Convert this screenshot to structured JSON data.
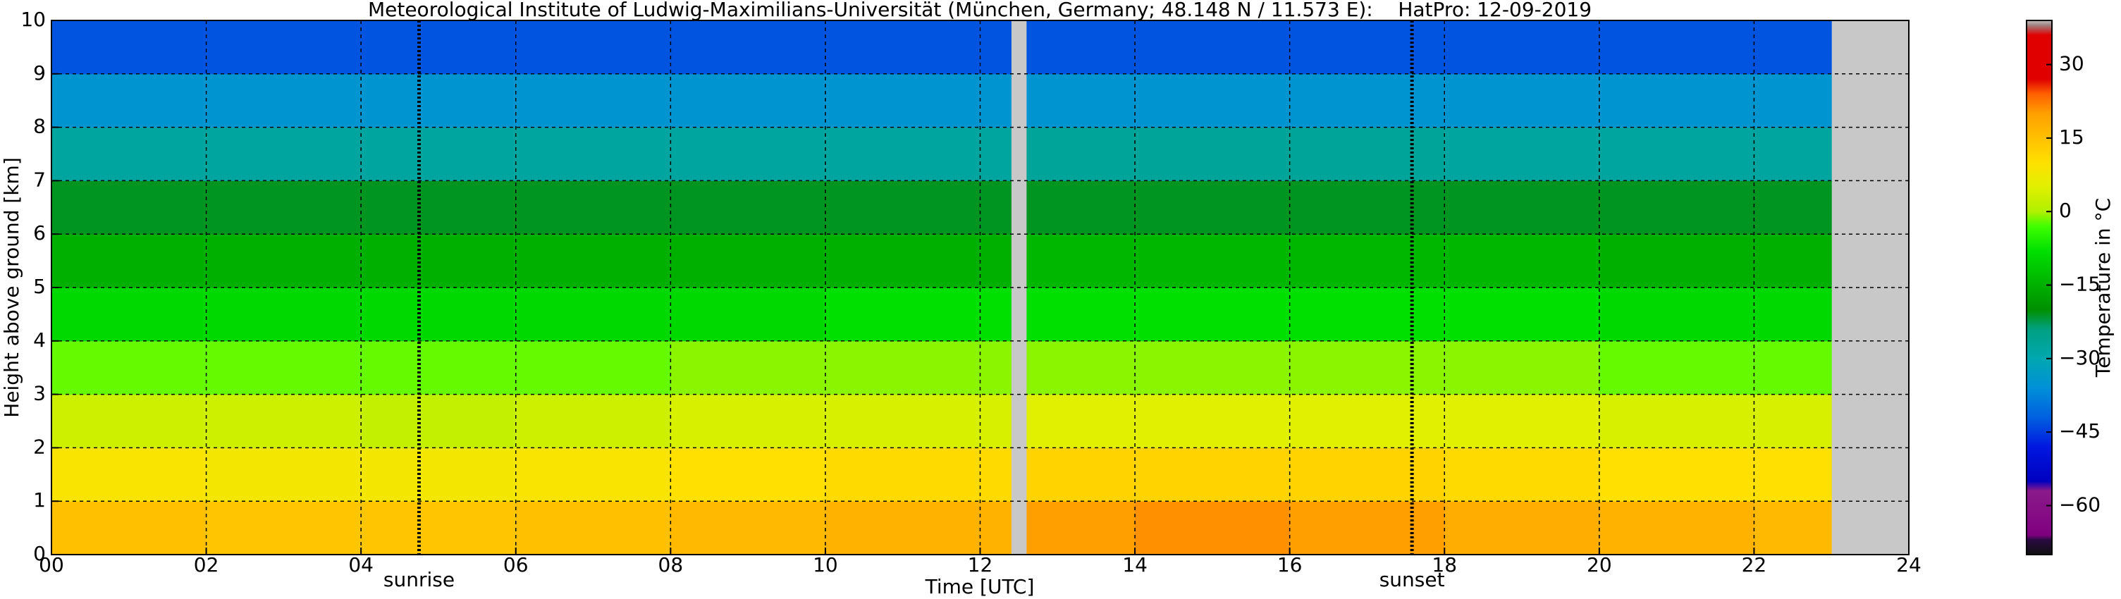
{
  "chart_data": {
    "type": "heatmap",
    "title": "Meteorological Institute of Ludwig-Maximilians-Universität (München, Germany; 48.148 N / 11.573 E):    HatPro: 12-09-2019",
    "x_label": "Time [UTC]",
    "y_label": "Height above ground [km]",
    "xlim": [
      0,
      24
    ],
    "ylim": [
      0,
      10
    ],
    "xticks": [
      {
        "value": 0,
        "label": "00"
      },
      {
        "value": 2,
        "label": "02"
      },
      {
        "value": 4,
        "label": "04"
      },
      {
        "value": 6,
        "label": "06"
      },
      {
        "value": 8,
        "label": "08"
      },
      {
        "value": 10,
        "label": "10"
      },
      {
        "value": 12,
        "label": "12"
      },
      {
        "value": 14,
        "label": "14"
      },
      {
        "value": 16,
        "label": "16"
      },
      {
        "value": 18,
        "label": "18"
      },
      {
        "value": 20,
        "label": "20"
      },
      {
        "value": 22,
        "label": "22"
      },
      {
        "value": 24,
        "label": "24"
      }
    ],
    "yticks": [
      0,
      1,
      2,
      3,
      4,
      5,
      6,
      7,
      8,
      9,
      10
    ],
    "grid": true,
    "xbins": [
      0,
      2,
      4,
      6,
      8,
      10,
      12.4,
      12.6,
      14,
      16,
      18,
      20,
      22,
      23
    ],
    "ybins": [
      0,
      1,
      2,
      3,
      4,
      5,
      6,
      7,
      8,
      9,
      10
    ],
    "z": [
      [
        15,
        14,
        14,
        15,
        16,
        17,
        null,
        20,
        21,
        20,
        18,
        17,
        16
      ],
      [
        9,
        8,
        8,
        9,
        10,
        11,
        null,
        12,
        12,
        12,
        11,
        10,
        10
      ],
      [
        3,
        3,
        2,
        3,
        4,
        4,
        null,
        5,
        5,
        5,
        5,
        4,
        4
      ],
      [
        -2,
        -2,
        -2,
        -2,
        -1,
        -1,
        null,
        -1,
        -1,
        -1,
        -1,
        -2,
        -2
      ],
      [
        -9,
        -9,
        -9,
        -9,
        -9,
        -8,
        null,
        -8,
        -8,
        -8,
        -8,
        -9,
        -9
      ],
      [
        -15,
        -15,
        -15,
        -15,
        -15,
        -15,
        null,
        -14,
        -14,
        -14,
        -14,
        -15,
        -15
      ],
      [
        -21,
        -21,
        -21,
        -21,
        -21,
        -21,
        null,
        -21,
        -21,
        -21,
        -21,
        -21,
        -21
      ],
      [
        -28,
        -28,
        -28,
        -28,
        -28,
        -28,
        null,
        -27,
        -27,
        -27,
        -28,
        -28,
        -28
      ],
      [
        -35,
        -35,
        -35,
        -35,
        -35,
        -35,
        null,
        -35,
        -35,
        -35,
        -35,
        -35,
        -35
      ],
      [
        -43,
        -43,
        -43,
        -43,
        -43,
        -43,
        null,
        -43,
        -43,
        -43,
        -43,
        -43,
        -43
      ]
    ],
    "missing_color": "#c8c8c8",
    "annotations": [
      {
        "text": "sunrise",
        "x": 4.75
      },
      {
        "text": "sunset",
        "x": 17.58
      }
    ],
    "colorbar": {
      "label": "Temperature in °C",
      "lim": [
        -70,
        39
      ],
      "ticks": [
        {
          "value": -60,
          "label": "−60"
        },
        {
          "value": -45,
          "label": "−45"
        },
        {
          "value": -30,
          "label": "−30"
        },
        {
          "value": -15,
          "label": "−15"
        },
        0,
        15,
        30
      ]
    },
    "colorscale": [
      [
        -70,
        "#101010"
      ],
      [
        -67,
        "#2a0a40"
      ],
      [
        -66,
        "#800080"
      ],
      [
        -57,
        "#8a1a8a"
      ],
      [
        -55,
        "#0000c0"
      ],
      [
        -48,
        "#0018e0"
      ],
      [
        -42,
        "#0060e0"
      ],
      [
        -36,
        "#0090d8"
      ],
      [
        -30,
        "#00a8b0"
      ],
      [
        -24,
        "#00a080"
      ],
      [
        -20,
        "#009000"
      ],
      [
        -15,
        "#00b000"
      ],
      [
        -8,
        "#00e000"
      ],
      [
        -3,
        "#40ff00"
      ],
      [
        0,
        "#b0f000"
      ],
      [
        5,
        "#e0f000"
      ],
      [
        10,
        "#ffe000"
      ],
      [
        15,
        "#ffc000"
      ],
      [
        20,
        "#ffa000"
      ],
      [
        24,
        "#ff6000"
      ],
      [
        27,
        "#e00000"
      ],
      [
        36,
        "#e00000"
      ],
      [
        38,
        "#a08080"
      ],
      [
        39,
        "#c0c0c0"
      ]
    ]
  }
}
